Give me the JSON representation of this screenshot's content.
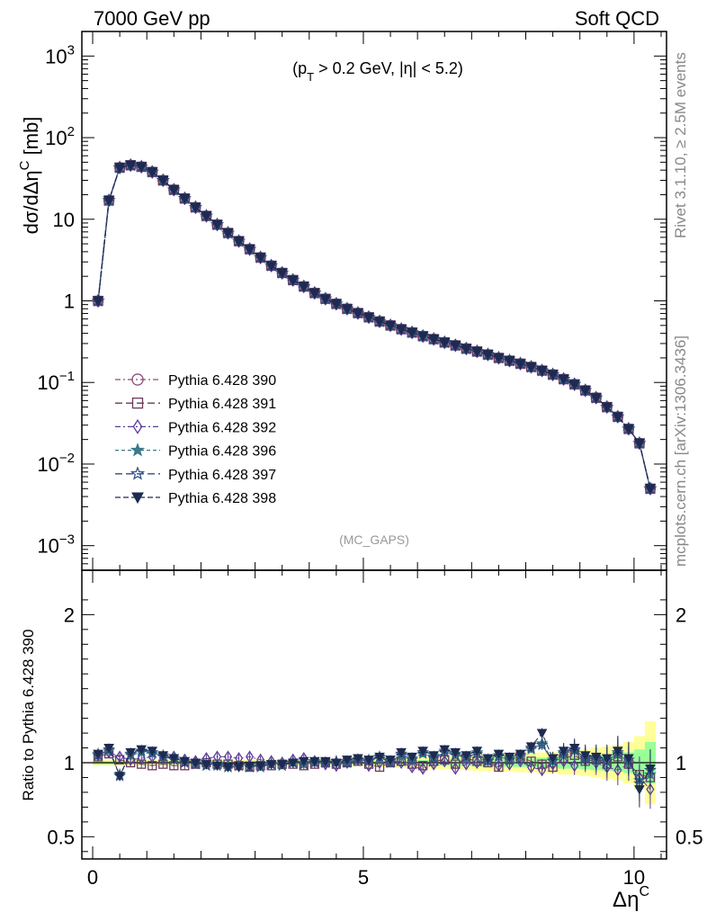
{
  "header": {
    "left": "7000 GeV pp",
    "right": "Soft QCD"
  },
  "side": {
    "rivet": "Rivet 3.1.10, ≥ 2.5M events",
    "mcplots": "mcplots.cern.ch [arXiv:1306.3436]"
  },
  "colors": {
    "p390": "#8a4a7a",
    "p391": "#6a3a5a",
    "p392": "#5a3a9a",
    "p396": "#3a7a8a",
    "p397": "#2e4e7e",
    "p398": "#1e2a50",
    "band_yellow": "#ffff99",
    "band_green": "#99ff99"
  },
  "chart_data": [
    {
      "type": "line",
      "annotation": "(p_T > 0.2 GeV, |η| < 5.2)",
      "watermark": "(MC_GAPS)",
      "ylabel": "dσ/dΔη^C [mb]",
      "yscale": "log",
      "xlim": [
        -0.2,
        10.6
      ],
      "ylim": [
        0.0005,
        2000
      ],
      "yticks": [
        {
          "v": 0.001,
          "base": "10",
          "exp": "−3"
        },
        {
          "v": 0.01,
          "base": "10",
          "exp": "−2"
        },
        {
          "v": 0.1,
          "base": "10",
          "exp": "−1"
        },
        {
          "v": 1,
          "base": "1",
          "exp": ""
        },
        {
          "v": 10,
          "base": "10",
          "exp": ""
        },
        {
          "v": 100,
          "base": "10",
          "exp": "2"
        },
        {
          "v": 1000,
          "base": "10",
          "exp": "3"
        }
      ],
      "x": [
        0.1,
        0.3,
        0.5,
        0.7,
        0.9,
        1.1,
        1.3,
        1.5,
        1.7,
        1.9,
        2.1,
        2.3,
        2.5,
        2.7,
        2.9,
        3.1,
        3.3,
        3.5,
        3.7,
        3.9,
        4.1,
        4.3,
        4.5,
        4.7,
        4.9,
        5.1,
        5.3,
        5.5,
        5.7,
        5.9,
        6.1,
        6.3,
        6.5,
        6.7,
        6.9,
        7.1,
        7.3,
        7.5,
        7.7,
        7.9,
        8.1,
        8.3,
        8.5,
        8.7,
        8.9,
        9.1,
        9.3,
        9.5,
        9.7,
        9.9,
        10.1,
        10.3
      ],
      "series": [
        {
          "name": "Pythia 6.428 390",
          "marker": "circle-open",
          "dash": "6,3,2,3",
          "colorKey": "p390",
          "values": [
            1.0,
            17,
            43,
            46,
            44,
            38,
            30,
            23,
            18,
            14,
            11,
            8.6,
            6.8,
            5.4,
            4.3,
            3.4,
            2.7,
            2.2,
            1.8,
            1.5,
            1.25,
            1.06,
            0.92,
            0.8,
            0.71,
            0.63,
            0.56,
            0.5,
            0.45,
            0.41,
            0.37,
            0.34,
            0.31,
            0.285,
            0.26,
            0.24,
            0.22,
            0.2,
            0.185,
            0.17,
            0.155,
            0.14,
            0.125,
            0.11,
            0.095,
            0.08,
            0.065,
            0.05,
            0.038,
            0.027,
            0.018,
            0.005
          ]
        },
        {
          "name": "Pythia 6.428 391",
          "marker": "square-open",
          "dash": "8,4",
          "colorKey": "p391",
          "values": [
            1.0,
            17,
            43,
            46,
            44,
            38,
            30,
            23,
            18,
            14,
            11,
            8.6,
            6.8,
            5.4,
            4.3,
            3.4,
            2.7,
            2.2,
            1.8,
            1.5,
            1.25,
            1.06,
            0.92,
            0.8,
            0.71,
            0.63,
            0.56,
            0.5,
            0.45,
            0.41,
            0.37,
            0.34,
            0.31,
            0.285,
            0.26,
            0.24,
            0.22,
            0.2,
            0.185,
            0.17,
            0.155,
            0.14,
            0.125,
            0.11,
            0.095,
            0.08,
            0.065,
            0.05,
            0.038,
            0.027,
            0.018,
            0.005
          ]
        },
        {
          "name": "Pythia 6.428 392",
          "marker": "diamond-open",
          "dash": "6,3,2,3",
          "colorKey": "p392",
          "values": [
            1.0,
            17,
            43,
            46,
            44,
            38,
            30,
            23,
            18,
            14,
            11,
            8.6,
            6.8,
            5.4,
            4.3,
            3.4,
            2.7,
            2.2,
            1.8,
            1.5,
            1.25,
            1.06,
            0.92,
            0.8,
            0.71,
            0.63,
            0.56,
            0.5,
            0.45,
            0.41,
            0.37,
            0.34,
            0.31,
            0.285,
            0.26,
            0.24,
            0.22,
            0.2,
            0.185,
            0.17,
            0.155,
            0.14,
            0.125,
            0.11,
            0.095,
            0.08,
            0.065,
            0.05,
            0.038,
            0.027,
            0.018,
            0.005
          ]
        },
        {
          "name": "Pythia 6.428 396",
          "marker": "star-filled",
          "dash": "4,3",
          "colorKey": "p396",
          "values": [
            1.0,
            17,
            43,
            46,
            44,
            38,
            30,
            23,
            18,
            14,
            11,
            8.6,
            6.8,
            5.4,
            4.3,
            3.4,
            2.7,
            2.2,
            1.8,
            1.5,
            1.25,
            1.06,
            0.92,
            0.8,
            0.71,
            0.63,
            0.56,
            0.5,
            0.45,
            0.41,
            0.37,
            0.34,
            0.31,
            0.285,
            0.26,
            0.24,
            0.22,
            0.2,
            0.185,
            0.17,
            0.155,
            0.14,
            0.125,
            0.11,
            0.095,
            0.08,
            0.065,
            0.05,
            0.038,
            0.027,
            0.018,
            0.005
          ]
        },
        {
          "name": "Pythia 6.428 397",
          "marker": "star-open",
          "dash": "8,4",
          "colorKey": "p397",
          "values": [
            1.0,
            17,
            43,
            46,
            44,
            38,
            30,
            23,
            18,
            14,
            11,
            8.6,
            6.8,
            5.4,
            4.3,
            3.4,
            2.7,
            2.2,
            1.8,
            1.5,
            1.25,
            1.06,
            0.92,
            0.8,
            0.71,
            0.63,
            0.56,
            0.5,
            0.45,
            0.41,
            0.37,
            0.34,
            0.31,
            0.285,
            0.26,
            0.24,
            0.22,
            0.2,
            0.185,
            0.17,
            0.155,
            0.14,
            0.125,
            0.11,
            0.095,
            0.08,
            0.065,
            0.05,
            0.038,
            0.027,
            0.018,
            0.005
          ]
        },
        {
          "name": "Pythia 6.428 398",
          "marker": "triangle-down-filled",
          "dash": "6,3",
          "colorKey": "p398",
          "values": [
            1.0,
            17,
            43,
            46,
            44,
            38,
            30,
            23,
            18,
            14,
            11,
            8.6,
            6.8,
            5.4,
            4.3,
            3.4,
            2.7,
            2.2,
            1.8,
            1.5,
            1.25,
            1.06,
            0.92,
            0.8,
            0.71,
            0.63,
            0.56,
            0.5,
            0.45,
            0.41,
            0.37,
            0.34,
            0.31,
            0.285,
            0.26,
            0.24,
            0.22,
            0.2,
            0.185,
            0.17,
            0.155,
            0.14,
            0.125,
            0.11,
            0.095,
            0.08,
            0.065,
            0.05,
            0.038,
            0.027,
            0.018,
            0.005
          ]
        }
      ],
      "legend": "left"
    },
    {
      "type": "line",
      "ylabel": "Ratio to Pythia 6.428 390",
      "xlabel": "Δη^C",
      "xlim": [
        -0.2,
        10.6
      ],
      "ylim": [
        0.35,
        2.3
      ],
      "yticks": [
        0.5,
        1,
        2
      ],
      "xticks": [
        0,
        5,
        10
      ],
      "band_yellow": [
        0.02,
        0.02,
        0.02,
        0.02,
        0.02,
        0.02,
        0.02,
        0.02,
        0.02,
        0.02,
        0.02,
        0.02,
        0.02,
        0.02,
        0.02,
        0.02,
        0.02,
        0.02,
        0.02,
        0.02,
        0.02,
        0.02,
        0.02,
        0.025,
        0.025,
        0.03,
        0.03,
        0.035,
        0.035,
        0.04,
        0.04,
        0.045,
        0.045,
        0.05,
        0.05,
        0.055,
        0.055,
        0.06,
        0.06,
        0.065,
        0.065,
        0.07,
        0.07,
        0.08,
        0.08,
        0.09,
        0.1,
        0.11,
        0.12,
        0.14,
        0.18,
        0.28
      ],
      "band_green": [
        0.01,
        0.01,
        0.01,
        0.01,
        0.01,
        0.01,
        0.01,
        0.01,
        0.01,
        0.01,
        0.01,
        0.01,
        0.01,
        0.01,
        0.01,
        0.01,
        0.01,
        0.01,
        0.01,
        0.01,
        0.01,
        0.01,
        0.01,
        0.012,
        0.012,
        0.014,
        0.014,
        0.016,
        0.016,
        0.018,
        0.018,
        0.02,
        0.02,
        0.022,
        0.022,
        0.025,
        0.025,
        0.028,
        0.028,
        0.03,
        0.03,
        0.035,
        0.035,
        0.04,
        0.04,
        0.045,
        0.05,
        0.055,
        0.06,
        0.07,
        0.09,
        0.14
      ],
      "series": [
        {
          "name": "Pythia 6.428 390",
          "colorKey": "p390",
          "values": [
            1,
            1,
            1,
            1,
            1,
            1,
            1,
            1,
            1,
            1,
            1,
            1,
            1,
            1,
            1,
            1,
            1,
            1,
            1,
            1,
            1,
            1,
            1,
            1,
            1,
            1,
            1,
            1,
            1,
            1,
            1,
            1,
            1,
            1,
            1,
            1,
            1,
            1,
            1,
            1,
            1,
            1,
            1,
            1,
            1,
            1,
            1,
            1,
            1,
            1,
            1,
            1
          ]
        },
        {
          "name": "Pythia 6.428 391",
          "colorKey": "p391",
          "values": [
            1.04,
            1.06,
            1.02,
            1.0,
            0.99,
            0.98,
            0.99,
            0.98,
            0.98,
            0.99,
            1.0,
            0.99,
            0.99,
            0.98,
            0.97,
            0.98,
            0.98,
            0.99,
            0.99,
            0.98,
            0.99,
            1.0,
            0.99,
            1.0,
            1.01,
            0.99,
            0.97,
            1.0,
            1.01,
            0.99,
            0.98,
            1.01,
            1.02,
            0.99,
            1.03,
            1.01,
            1.0,
            0.97,
            1.02,
            1.04,
            1.01,
            0.99,
            0.97,
            1.03,
            1.05,
            1.01,
            1.02,
            0.99,
            1.04,
            0.99,
            0.92,
            0.9
          ]
        },
        {
          "name": "Pythia 6.428 392",
          "colorKey": "p392",
          "values": [
            1.05,
            1.07,
            1.04,
            1.02,
            1.03,
            1.04,
            1.03,
            1.04,
            1.02,
            1.01,
            1.03,
            1.04,
            1.04,
            1.03,
            1.04,
            1.02,
            1.01,
            1.0,
            1.02,
            1.03,
            1.01,
            0.99,
            0.98,
            1.0,
            1.02,
            0.98,
            1.0,
            1.01,
            1.0,
            0.97,
            0.96,
            0.99,
            1.01,
            0.96,
            0.99,
            1.0,
            1.02,
            0.98,
            0.99,
            1.01,
            0.97,
            0.95,
            0.99,
            1.01,
            0.98,
            1.02,
            1.0,
            0.97,
            0.95,
            0.99,
            0.9,
            0.82
          ]
        },
        {
          "name": "Pythia 6.428 396",
          "colorKey": "p396",
          "values": [
            1.06,
            1.08,
            0.92,
            1.05,
            1.07,
            1.06,
            1.05,
            1.03,
            1.01,
            1.0,
            0.99,
            0.99,
            0.98,
            0.98,
            0.97,
            0.98,
            0.99,
            0.99,
            1.0,
            1.0,
            1.01,
            1.0,
            1.0,
            1.01,
            1.02,
            1.02,
            1.03,
            1.01,
            1.05,
            1.03,
            1.06,
            1.04,
            1.08,
            1.06,
            1.03,
            1.07,
            1.02,
            1.05,
            1.03,
            1.04,
            1.09,
            1.13,
            1.02,
            1.06,
            1.08,
            1.04,
            1.03,
            1.02,
            1.06,
            1.0,
            0.88,
            0.92
          ]
        },
        {
          "name": "Pythia 6.428 397",
          "colorKey": "p397",
          "values": [
            1.05,
            1.09,
            0.91,
            1.06,
            1.08,
            1.07,
            1.04,
            1.02,
            1.0,
            0.99,
            0.98,
            0.98,
            0.97,
            0.98,
            0.97,
            0.97,
            0.99,
            0.98,
            1.0,
            0.99,
            1.0,
            1.0,
            1.01,
            1.0,
            1.02,
            1.01,
            1.04,
            1.0,
            1.06,
            1.02,
            1.07,
            1.03,
            1.07,
            1.05,
            1.04,
            1.06,
            1.01,
            1.04,
            1.02,
            1.05,
            1.1,
            1.12,
            1.01,
            1.07,
            1.09,
            1.03,
            1.02,
            1.01,
            1.07,
            1.02,
            0.86,
            0.95
          ]
        },
        {
          "name": "Pythia 6.428 398",
          "colorKey": "p398",
          "values": [
            1.06,
            1.1,
            0.91,
            1.07,
            1.09,
            1.08,
            1.05,
            1.03,
            1.01,
            1.0,
            0.99,
            0.98,
            0.97,
            0.97,
            0.98,
            0.98,
            0.99,
            0.99,
            1.0,
            1.01,
            1.01,
            1.01,
            1.0,
            1.02,
            1.03,
            1.02,
            1.04,
            1.02,
            1.07,
            1.04,
            1.08,
            1.05,
            1.09,
            1.07,
            1.05,
            1.08,
            1.03,
            1.06,
            1.04,
            1.06,
            1.11,
            1.2,
            1.03,
            1.08,
            1.1,
            1.05,
            1.04,
            1.03,
            1.08,
            1.03,
            0.82,
            0.96
          ]
        }
      ]
    }
  ]
}
